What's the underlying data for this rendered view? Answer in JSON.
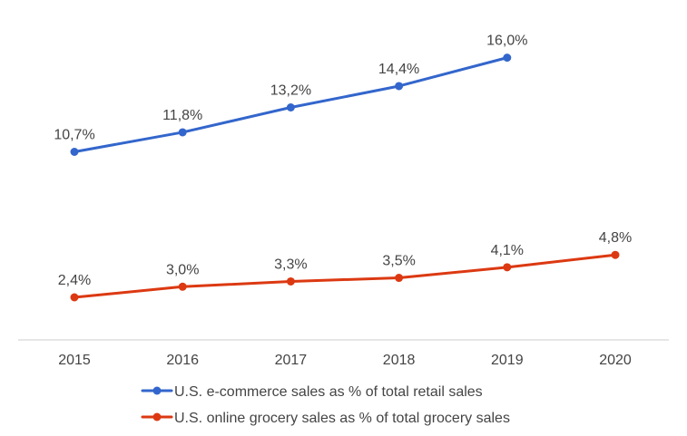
{
  "chart_data": {
    "type": "line",
    "title": "",
    "xlabel": "",
    "ylabel": "",
    "categories": [
      "2015",
      "2016",
      "2017",
      "2018",
      "2019",
      "2020"
    ],
    "ylim": [
      0,
      17
    ],
    "grid": false,
    "legend_position": "bottom",
    "series": [
      {
        "name": "U.S. e-commerce sales as % of total retail sales",
        "color": "#3366cc",
        "values": [
          10.7,
          11.8,
          13.2,
          14.4,
          16.0,
          null
        ],
        "labels": [
          "10,7%",
          "11,8%",
          "13,2%",
          "14,4%",
          "16,0%",
          ""
        ]
      },
      {
        "name": "U.S. online grocery sales as % of total grocery sales",
        "color": "#dc3912",
        "values": [
          2.4,
          3.0,
          3.3,
          3.5,
          4.1,
          4.8
        ],
        "labels": [
          "2,4%",
          "3,0%",
          "3,3%",
          "3,5%",
          "4,1%",
          "4,8%"
        ]
      }
    ]
  }
}
